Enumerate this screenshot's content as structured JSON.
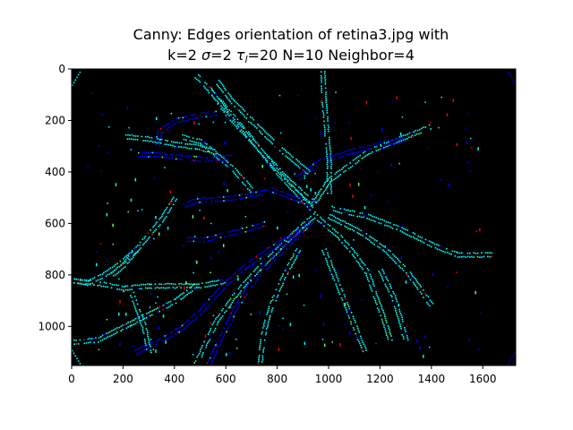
{
  "chart_data": {
    "type": "heatmap",
    "title": "Canny: Edges orientation of retina3.jpg with",
    "subtitle_parts": {
      "k": "k=2 ",
      "sigma_symbol": "σ",
      "sigma_value": "=2 ",
      "tau_symbol": "τ",
      "tau_sub": "l",
      "tau_value": "=20 N=10 Neighbor=4"
    },
    "xlabel": "",
    "ylabel": "",
    "xlim": [
      0,
      1728
    ],
    "ylim": [
      1152,
      0
    ],
    "x_ticks": [
      0,
      200,
      400,
      600,
      800,
      1000,
      1200,
      1400,
      1600
    ],
    "y_ticks": [
      0,
      200,
      400,
      600,
      800,
      1000
    ],
    "background_color": "#000000",
    "edge_colors": [
      "#0000ff",
      "#00ffff",
      "#66ff66",
      "#ff0000",
      "#ffff00"
    ],
    "vessel_paths": [
      {
        "color": "#00ffff",
        "points": [
          [
            930,
            540
          ],
          [
            800,
            400
          ],
          [
            690,
            260
          ],
          [
            580,
            130
          ],
          [
            480,
            20
          ]
        ]
      },
      {
        "color": "#00ffff",
        "points": [
          [
            940,
            520
          ],
          [
            830,
            420
          ],
          [
            720,
            300
          ],
          [
            610,
            180
          ],
          [
            530,
            70
          ]
        ]
      },
      {
        "color": "#00ffff",
        "points": [
          [
            920,
            400
          ],
          [
            800,
            300
          ],
          [
            700,
            200
          ],
          [
            620,
            120
          ],
          [
            560,
            40
          ]
        ]
      },
      {
        "color": "#00ffff",
        "points": [
          [
            940,
            520
          ],
          [
            1000,
            430
          ],
          [
            1150,
            320
          ],
          [
            1300,
            260
          ],
          [
            1400,
            220
          ]
        ]
      },
      {
        "color": "#0000ff",
        "points": [
          [
            880,
            420
          ],
          [
            960,
            360
          ],
          [
            1080,
            320
          ],
          [
            1200,
            290
          ],
          [
            1300,
            270
          ]
        ]
      },
      {
        "color": "#0000ff",
        "points": [
          [
            920,
            520
          ],
          [
            780,
            470
          ],
          [
            620,
            500
          ],
          [
            480,
            510
          ],
          [
            430,
            530
          ]
        ]
      },
      {
        "color": "#00ffff",
        "points": [
          [
            700,
            470
          ],
          [
            630,
            390
          ],
          [
            560,
            330
          ],
          [
            500,
            280
          ],
          [
            420,
            260
          ]
        ]
      },
      {
        "color": "#0000ff",
        "points": [
          [
            620,
            340
          ],
          [
            520,
            350
          ],
          [
            420,
            340
          ],
          [
            320,
            330
          ],
          [
            250,
            330
          ]
        ]
      },
      {
        "color": "#00ffff",
        "points": [
          [
            560,
            320
          ],
          [
            480,
            300
          ],
          [
            400,
            290
          ],
          [
            300,
            270
          ],
          [
            200,
            260
          ]
        ]
      },
      {
        "color": "#0000ff",
        "points": [
          [
            560,
            170
          ],
          [
            480,
            180
          ],
          [
            400,
            200
          ],
          [
            340,
            240
          ],
          [
            330,
            300
          ]
        ]
      },
      {
        "color": "#00ffff",
        "points": [
          [
            950,
            560
          ],
          [
            860,
            640
          ],
          [
            780,
            720
          ],
          [
            700,
            800
          ],
          [
            630,
            880
          ],
          [
            560,
            980
          ],
          [
            520,
            1060
          ],
          [
            480,
            1150
          ]
        ]
      },
      {
        "color": "#0000ff",
        "points": [
          [
            930,
            590
          ],
          [
            840,
            680
          ],
          [
            760,
            760
          ],
          [
            690,
            840
          ],
          [
            640,
            920
          ],
          [
            600,
            1000
          ],
          [
            560,
            1080
          ],
          [
            530,
            1150
          ]
        ]
      },
      {
        "color": "#0000ff",
        "points": [
          [
            900,
            620
          ],
          [
            780,
            690
          ],
          [
            680,
            760
          ],
          [
            580,
            850
          ],
          [
            500,
            940
          ],
          [
            420,
            1010
          ],
          [
            330,
            1060
          ],
          [
            240,
            1100
          ]
        ]
      },
      {
        "color": "#00ffff",
        "points": [
          [
            880,
            700
          ],
          [
            830,
            790
          ],
          [
            790,
            880
          ],
          [
            760,
            960
          ],
          [
            740,
            1050
          ],
          [
            730,
            1150
          ]
        ]
      },
      {
        "color": "#00ffff",
        "points": [
          [
            960,
            580
          ],
          [
            1040,
            650
          ],
          [
            1100,
            720
          ],
          [
            1150,
            790
          ],
          [
            1180,
            880
          ],
          [
            1210,
            960
          ],
          [
            1240,
            1060
          ]
        ]
      },
      {
        "color": "#00ffff",
        "points": [
          [
            1000,
            570
          ],
          [
            1120,
            630
          ],
          [
            1220,
            700
          ],
          [
            1300,
            780
          ],
          [
            1360,
            860
          ],
          [
            1400,
            920
          ]
        ]
      },
      {
        "color": "#00ffff",
        "points": [
          [
            1010,
            540
          ],
          [
            1150,
            570
          ],
          [
            1280,
            620
          ],
          [
            1400,
            680
          ],
          [
            1500,
            720
          ],
          [
            1640,
            720
          ]
        ]
      },
      {
        "color": "#00ffff",
        "points": [
          [
            980,
            700
          ],
          [
            1020,
            800
          ],
          [
            1060,
            900
          ],
          [
            1100,
            1000
          ],
          [
            1140,
            1100
          ]
        ]
      },
      {
        "color": "#00ffff",
        "points": [
          [
            600,
            820
          ],
          [
            500,
            840
          ],
          [
            400,
            840
          ],
          [
            300,
            840
          ],
          [
            200,
            850
          ],
          [
            100,
            830
          ],
          [
            0,
            820
          ]
        ]
      },
      {
        "color": "#00ffff",
        "points": [
          [
            480,
            840
          ],
          [
            400,
            900
          ],
          [
            300,
            950
          ],
          [
            200,
            1000
          ],
          [
            100,
            1050
          ],
          [
            0,
            1060
          ]
        ]
      },
      {
        "color": "#00ffff",
        "points": [
          [
            400,
            500
          ],
          [
            350,
            580
          ],
          [
            300,
            640
          ],
          [
            250,
            700
          ],
          [
            200,
            760
          ],
          [
            150,
            800
          ]
        ]
      },
      {
        "color": "#00ffff",
        "points": [
          [
            250,
            700
          ],
          [
            180,
            760
          ],
          [
            120,
            800
          ],
          [
            60,
            830
          ],
          [
            0,
            820
          ]
        ]
      },
      {
        "color": "#0000ff",
        "points": [
          [
            750,
            600
          ],
          [
            680,
            620
          ],
          [
            600,
            640
          ],
          [
            520,
            660
          ],
          [
            440,
            660
          ]
        ]
      },
      {
        "color": "#00ffff",
        "points": [
          [
            1000,
            480
          ],
          [
            1000,
            360
          ],
          [
            990,
            240
          ],
          [
            980,
            120
          ],
          [
            975,
            0
          ]
        ]
      },
      {
        "color": "#00ffff",
        "points": [
          [
            300,
            1100
          ],
          [
            280,
            1000
          ],
          [
            250,
            920
          ],
          [
            230,
            860
          ]
        ]
      },
      {
        "color": "#00ffff",
        "points": [
          [
            1200,
            780
          ],
          [
            1250,
            880
          ],
          [
            1280,
            980
          ],
          [
            1300,
            1060
          ]
        ]
      }
    ]
  }
}
